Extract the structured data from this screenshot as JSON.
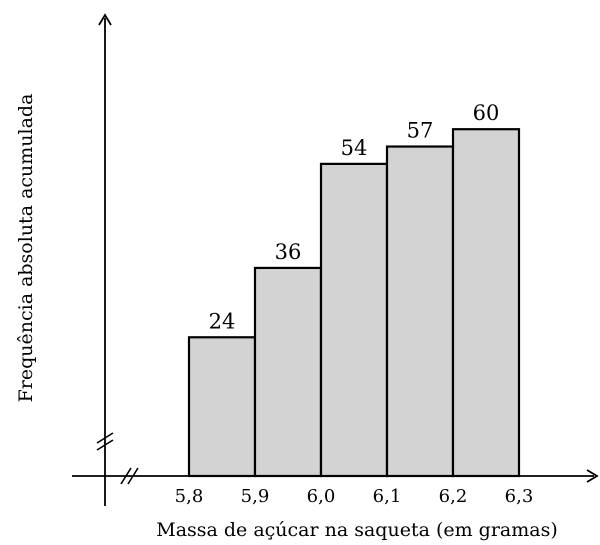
{
  "chart_data": {
    "type": "bar",
    "bins": [
      [
        5.8,
        5.9
      ],
      [
        5.9,
        6.0
      ],
      [
        6.0,
        6.1
      ],
      [
        6.1,
        6.2
      ],
      [
        6.2,
        6.3
      ]
    ],
    "values": [
      24,
      36,
      54,
      57,
      60
    ],
    "data_labels": [
      "24",
      "36",
      "54",
      "57",
      "60"
    ],
    "x_ticks": [
      5.8,
      5.9,
      6.0,
      6.1,
      6.2,
      6.3
    ],
    "x_tick_labels": [
      "5,8",
      "5,9",
      "6,0",
      "6,1",
      "6,2",
      "6,3"
    ],
    "xlabel": "Massa de açúcar na saqueta (em gramas)",
    "ylabel": "Frequência absoluta acumulada",
    "xlim": [
      5.8,
      6.3
    ],
    "ylim": [
      0,
      60
    ],
    "axis_breaks": true,
    "grid": false,
    "bar_color": "#d3d3d3",
    "edge_color": "#000000"
  }
}
